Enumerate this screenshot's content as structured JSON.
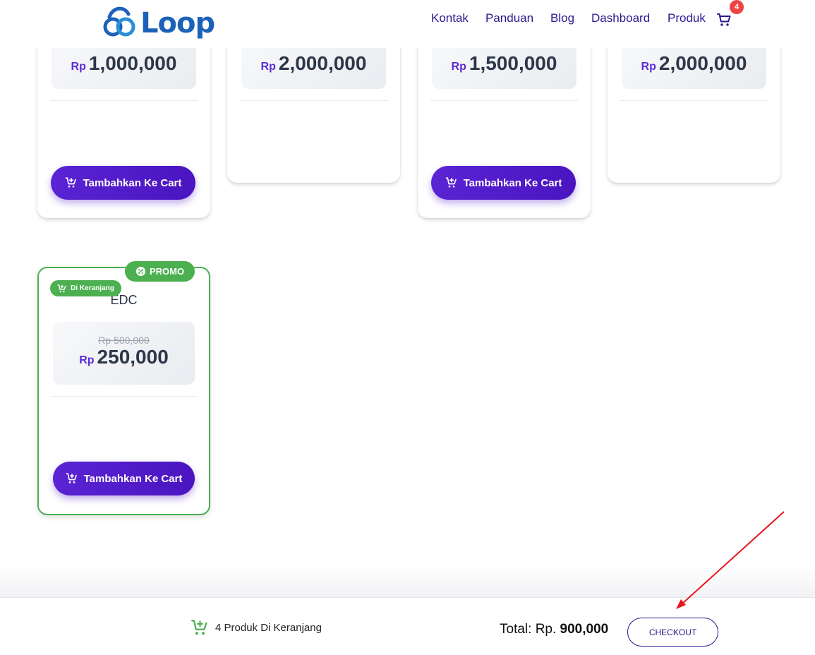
{
  "header": {
    "logo_text": "Loop",
    "nav": [
      "Kontak",
      "Panduan",
      "Blog",
      "Dashboard",
      "Produk"
    ],
    "cart_count": "4"
  },
  "products": [
    {
      "currency": "Rp",
      "price": "1,000,000",
      "button": "Tambahkan Ke Cart"
    },
    {
      "currency": "Rp",
      "price": "2,000,000"
    },
    {
      "currency": "Rp",
      "price": "1,500,000",
      "button": "Tambahkan Ke Cart"
    },
    {
      "currency": "Rp",
      "price": "2,000,000"
    }
  ],
  "promo_product": {
    "promo_label": "PROMO",
    "in_cart_label": "Di Keranjang",
    "name": "EDC",
    "old_price": "Rp 500,000",
    "currency": "Rp",
    "price": "250,000",
    "button": "Tambahkan Ke Cart"
  },
  "footer": {
    "cart_summary": "4 Produk Di Keranjang",
    "total_label": "Total: Rp.",
    "total_value": "900,000",
    "checkout": "CHECKOUT"
  },
  "colors": {
    "primary": "#5a24d4",
    "nav_text": "#2a1a8c",
    "promo_green": "#4caf50",
    "badge_red": "#ef4444",
    "annotation_arrow": "#e8141c"
  }
}
